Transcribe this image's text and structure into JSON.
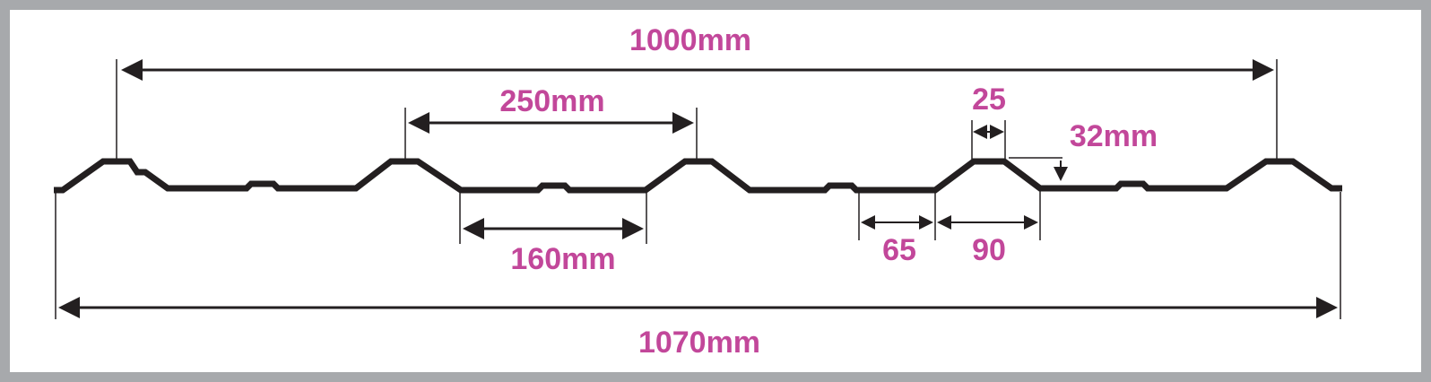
{
  "diagram": {
    "labels": {
      "overall_cover_width": "1000mm",
      "crest_pitch": "250mm",
      "crest_height": "32mm",
      "crest_top_width": "25",
      "pan_width": "160mm",
      "pan_segment": "65",
      "slope_span": "90",
      "total_width": "1070mm"
    },
    "colors": {
      "label": "#c2479a",
      "profile": "#231f20",
      "frame": "#a7a9ac"
    }
  }
}
